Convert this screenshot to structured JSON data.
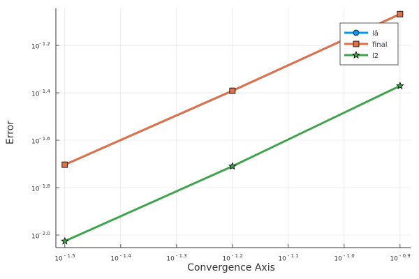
{
  "chart_data": {
    "type": "line",
    "x_label": "Convergence Axis",
    "y_label": "Error",
    "log_x": true,
    "log_y": true,
    "grid": true,
    "legend": "top-right",
    "x": [
      0.031623,
      0.063096,
      0.125893
    ],
    "series": [
      {
        "name": "lâ",
        "color": "#009af9",
        "marker": "circle",
        "values": [
          0.0198,
          0.0406,
          0.0855
        ]
      },
      {
        "name": "final",
        "color": "#e26f46",
        "marker": "square",
        "values": [
          0.0198,
          0.0406,
          0.0855
        ]
      },
      {
        "name": "l2",
        "color": "#3da44d",
        "marker": "star",
        "values": [
          0.00942,
          0.0195,
          0.0426
        ]
      }
    ],
    "xlim": [
      0.03048,
      0.1315
    ],
    "ylim": [
      0.00885,
      0.0904
    ],
    "xticks": [
      {
        "value": 0.031623,
        "label": "10",
        "exponent": "- 1.5"
      },
      {
        "value": 0.039811,
        "label": "10",
        "exponent": "- 1.4"
      },
      {
        "value": 0.050119,
        "label": "10",
        "exponent": "- 1.3"
      },
      {
        "value": 0.063096,
        "label": "10",
        "exponent": "- 1.2"
      },
      {
        "value": 0.079433,
        "label": "10",
        "exponent": "- 1.1"
      },
      {
        "value": 0.1,
        "label": "10",
        "exponent": "- 1.0"
      },
      {
        "value": 0.125893,
        "label": "10",
        "exponent": "- 0.9"
      }
    ],
    "yticks": [
      {
        "value": 0.01,
        "label": "10",
        "exponent": "- 2.0"
      },
      {
        "value": 0.015849,
        "label": "10",
        "exponent": "- 1.8"
      },
      {
        "value": 0.025119,
        "label": "10",
        "exponent": "- 1.6"
      },
      {
        "value": 0.039811,
        "label": "10",
        "exponent": "- 1.4"
      },
      {
        "value": 0.063096,
        "label": "10",
        "exponent": "- 1.2"
      }
    ]
  }
}
